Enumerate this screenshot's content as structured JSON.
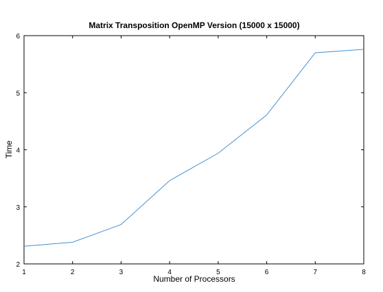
{
  "chart_data": {
    "type": "line",
    "title": "Matrix Transposition OpenMP Version (15000 x 15000)",
    "xlabel": "Number of Processors",
    "ylabel": "Time",
    "xlim": [
      1,
      8
    ],
    "ylim": [
      2,
      6
    ],
    "xticks": [
      1,
      2,
      3,
      4,
      5,
      6,
      7,
      8
    ],
    "yticks": [
      2,
      3,
      4,
      5,
      6
    ],
    "grid": false,
    "line_color": "#3f8fd2",
    "series": [
      {
        "x": [
          1,
          2,
          3,
          4,
          5,
          6,
          7,
          8
        ],
        "values": [
          2.31,
          2.38,
          2.69,
          3.46,
          3.94,
          4.61,
          5.7,
          5.76
        ]
      }
    ]
  }
}
